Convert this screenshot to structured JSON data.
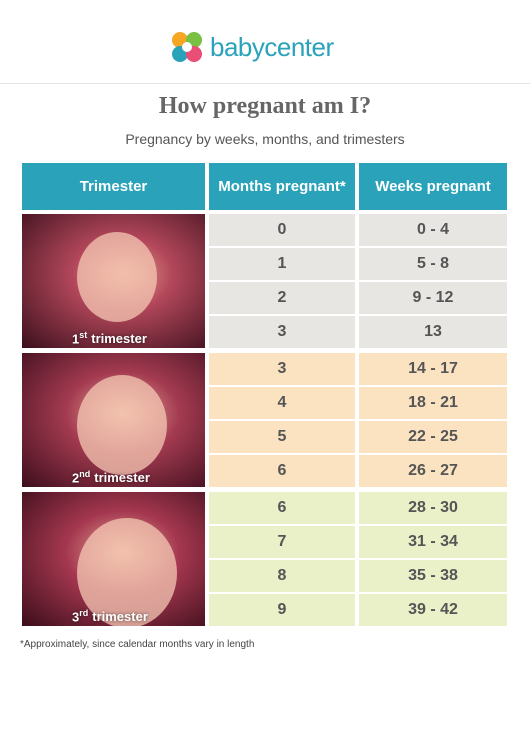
{
  "header": {
    "logo": "babycenter",
    "title": "How pregnant am I?",
    "subtitle": "Pregnancy by weeks, months, and trimesters"
  },
  "table": {
    "columns": [
      "Trimester",
      "Months pregnant*",
      "Weeks pregnant"
    ],
    "groups": [
      {
        "number": "1",
        "suffix": "st",
        "label": "trimester",
        "rows": [
          [
            "0",
            "0 - 4"
          ],
          [
            "1",
            "5 - 8"
          ],
          [
            "2",
            "9 - 12"
          ],
          [
            "3",
            "13"
          ]
        ]
      },
      {
        "number": "2",
        "suffix": "nd",
        "label": "trimester",
        "rows": [
          [
            "3",
            "14 - 17"
          ],
          [
            "4",
            "18 - 21"
          ],
          [
            "5",
            "22 - 25"
          ],
          [
            "6",
            "26 - 27"
          ]
        ]
      },
      {
        "number": "3",
        "suffix": "rd",
        "label": "trimester",
        "rows": [
          [
            "6",
            "28 - 30"
          ],
          [
            "7",
            "31 - 34"
          ],
          [
            "8",
            "35 - 38"
          ],
          [
            "9",
            "39 - 42"
          ]
        ]
      }
    ]
  },
  "footnote": "*Approximately, since calendar months vary in length"
}
